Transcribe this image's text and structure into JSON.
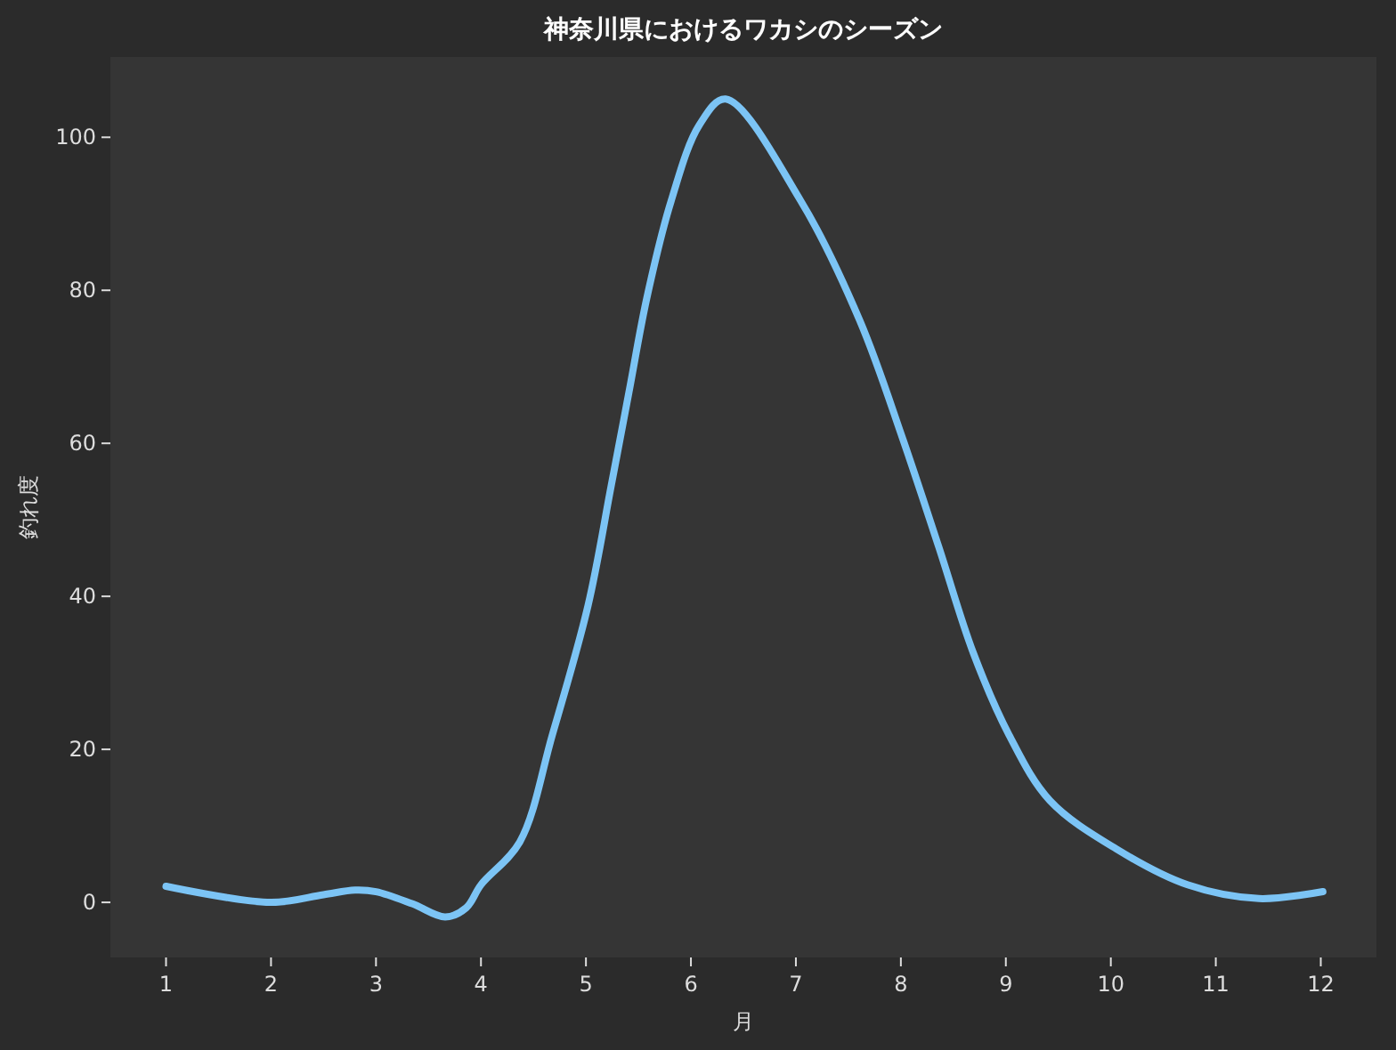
{
  "chart_data": {
    "type": "line",
    "title": "神奈川県におけるワカシのシーズン",
    "xlabel": "月",
    "ylabel": "釣れ度",
    "xlim": [
      0.47,
      12.53
    ],
    "ylim": [
      -7.2,
      110.5
    ],
    "xticks": [
      1,
      2,
      3,
      4,
      5,
      6,
      7,
      8,
      9,
      10,
      11,
      12
    ],
    "yticks": [
      0,
      20,
      40,
      60,
      80,
      100
    ],
    "grid": false,
    "marker": "none",
    "line_style": "solid",
    "series": [
      {
        "color": "#7cc4f5",
        "x": [
          1,
          2,
          2.5,
          2.8,
          3,
          3.35,
          3.66,
          3.86,
          4,
          4.37,
          4.68,
          5.02,
          5.24,
          5.41,
          5.58,
          5.81,
          6.08,
          6.33,
          7.05,
          7.61,
          8.02,
          8.36,
          8.69,
          9.03,
          9.42,
          10.05,
          10.73,
          11.41,
          12.02
        ],
        "values": [
          2.1,
          0,
          1,
          1.6,
          1.4,
          -0.2,
          -1.9,
          -0.7,
          2.3,
          7.9,
          21.9,
          38.8,
          54.4,
          66.7,
          79,
          91.6,
          101.6,
          105,
          91.6,
          76,
          60.5,
          46.5,
          32.6,
          21.9,
          13.3,
          7,
          2.3,
          0.5,
          1.4
        ]
      }
    ]
  }
}
